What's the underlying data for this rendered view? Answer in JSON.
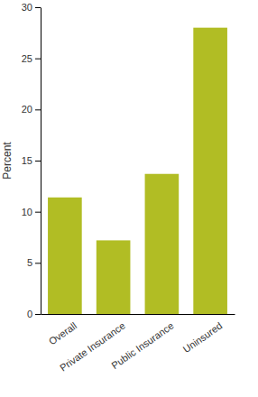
{
  "chart_data": {
    "type": "bar",
    "y_label": "Percent",
    "categories": [
      "Overall",
      "Private Insurance",
      "Public Insurance",
      "Uninsured"
    ],
    "values": [
      11.4,
      7.2,
      13.7,
      28
    ],
    "color": "#b1bd24",
    "ylim": [
      0,
      30
    ],
    "yticks": [
      0,
      5,
      10,
      15,
      20,
      25,
      30
    ],
    "grid": false
  }
}
